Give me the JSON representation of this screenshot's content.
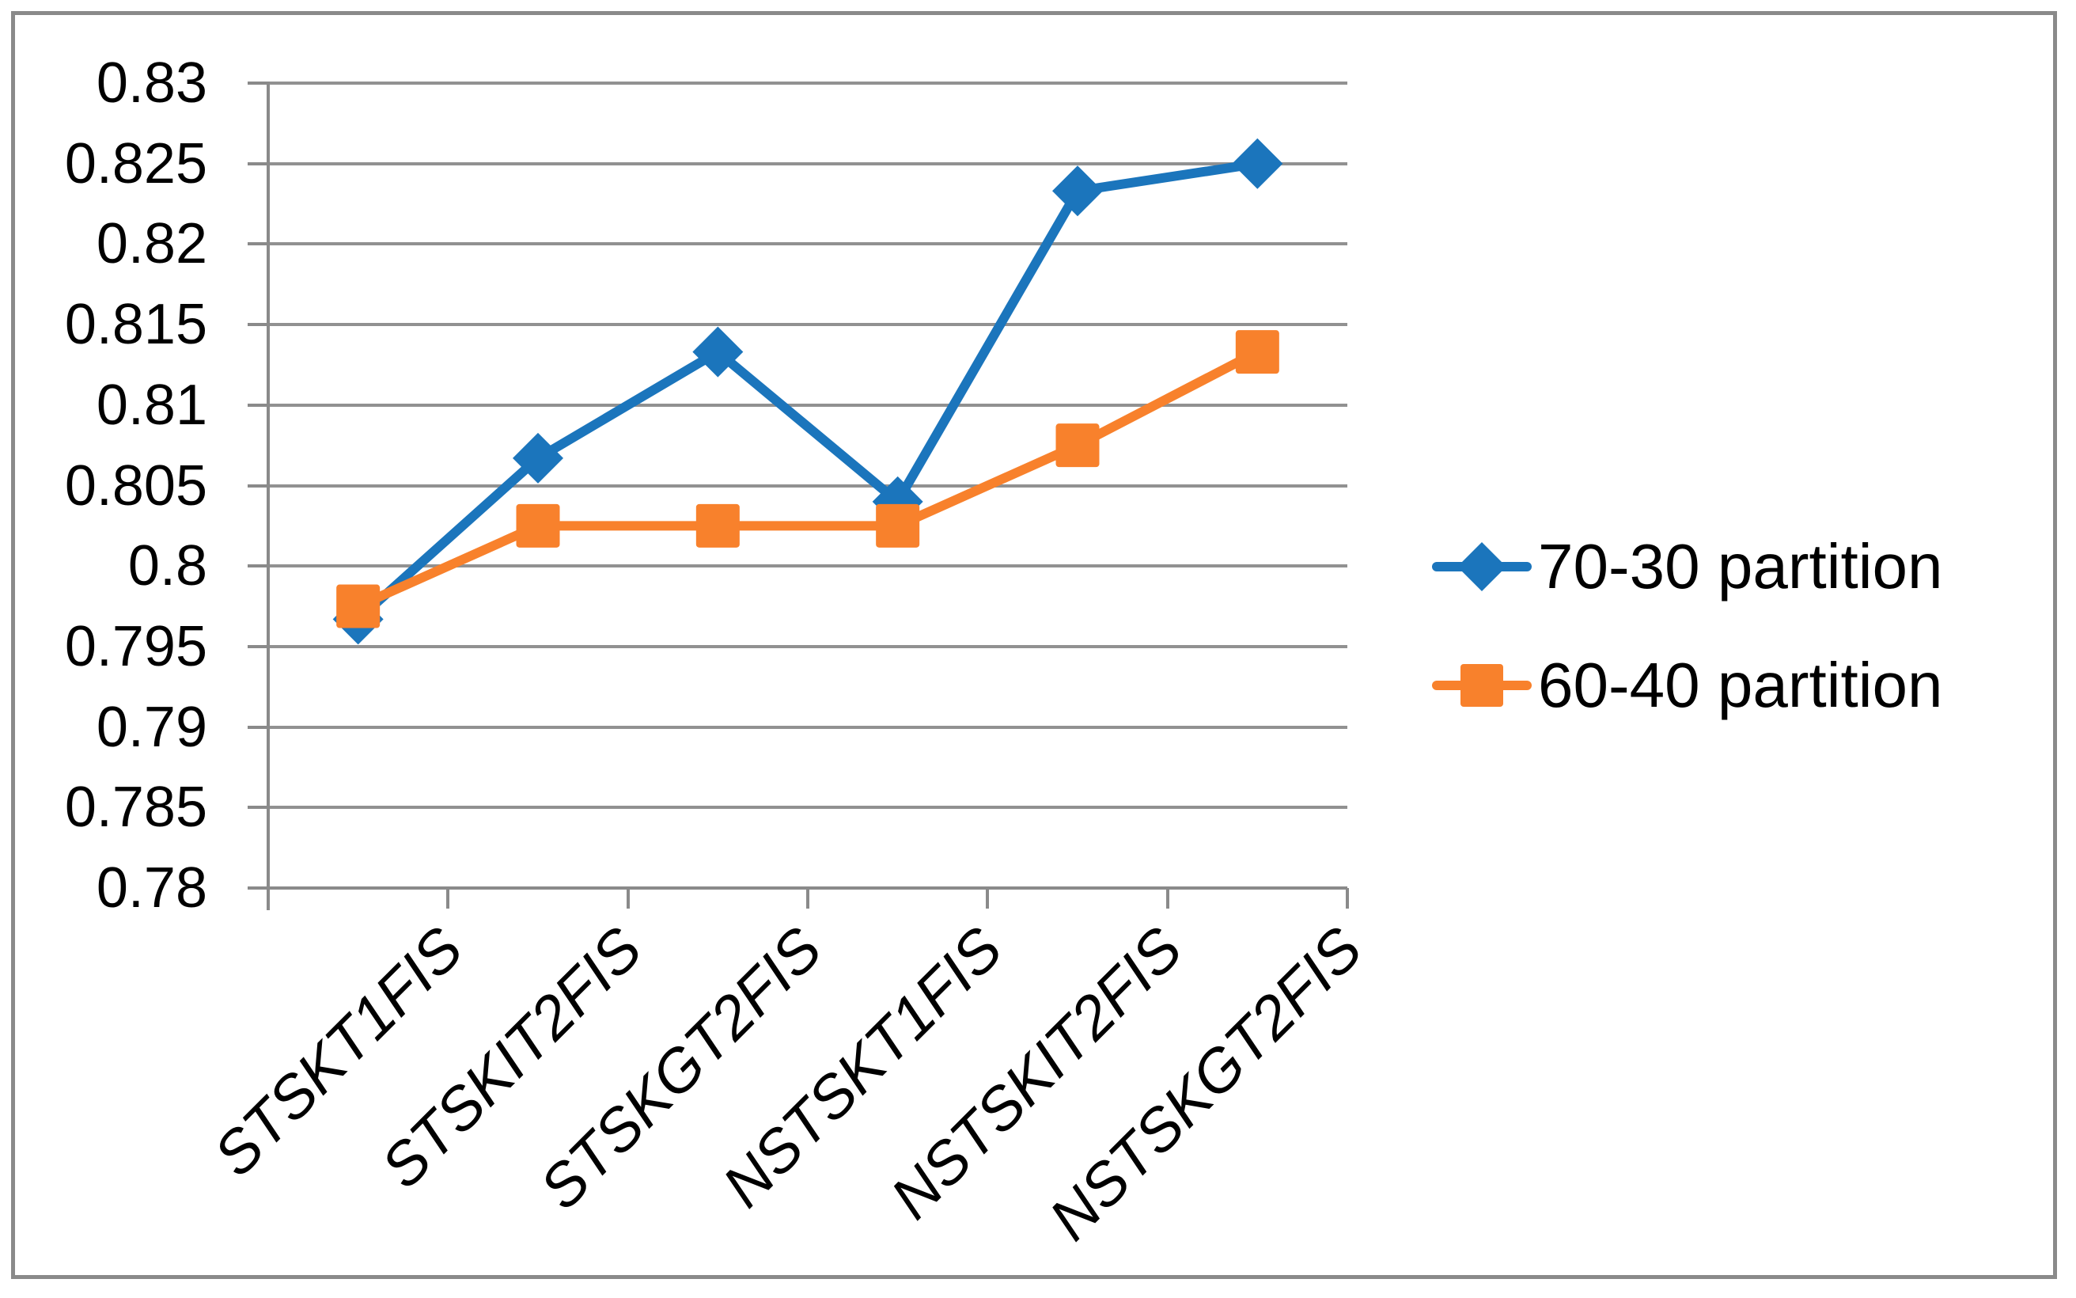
{
  "figure": {
    "background": "#FFFFFF",
    "border_color": "#8A8A8A"
  },
  "chart_data": {
    "type": "line",
    "title": "",
    "categories": [
      "STSKT1FIS",
      "STSKIT2FIS",
      "STSKGT2FIS",
      "NSTSKT1FIS",
      "NSTSKIT2FIS",
      "NSTSKGT2FIS"
    ],
    "series": [
      {
        "name": "70-30 partition",
        "marker": "diamond",
        "color": "#1B75BC",
        "values": [
          0.7967,
          0.8067,
          0.8133,
          0.804,
          0.8233,
          0.825
        ]
      },
      {
        "name": "60-40 partition",
        "marker": "square",
        "color": "#F8812C",
        "values": [
          0.7975,
          0.8025,
          0.8025,
          0.8025,
          0.8075,
          0.8133
        ]
      }
    ],
    "y_axis": {
      "min": 0.78,
      "max": 0.83,
      "step": 0.005,
      "tick_labels": [
        "0.83",
        "0.825",
        "0.82",
        "0.815",
        "0.81",
        "0.805",
        "0.8",
        "0.795",
        "0.79",
        "0.785",
        "0.78"
      ]
    },
    "x_axis": {
      "label_rotation_deg": -45,
      "italic": true
    },
    "grid": true,
    "legend_position": "right-middle",
    "gridline_color": "#919191",
    "axis_color": "#8A8A8A",
    "text_color": "#000000"
  }
}
